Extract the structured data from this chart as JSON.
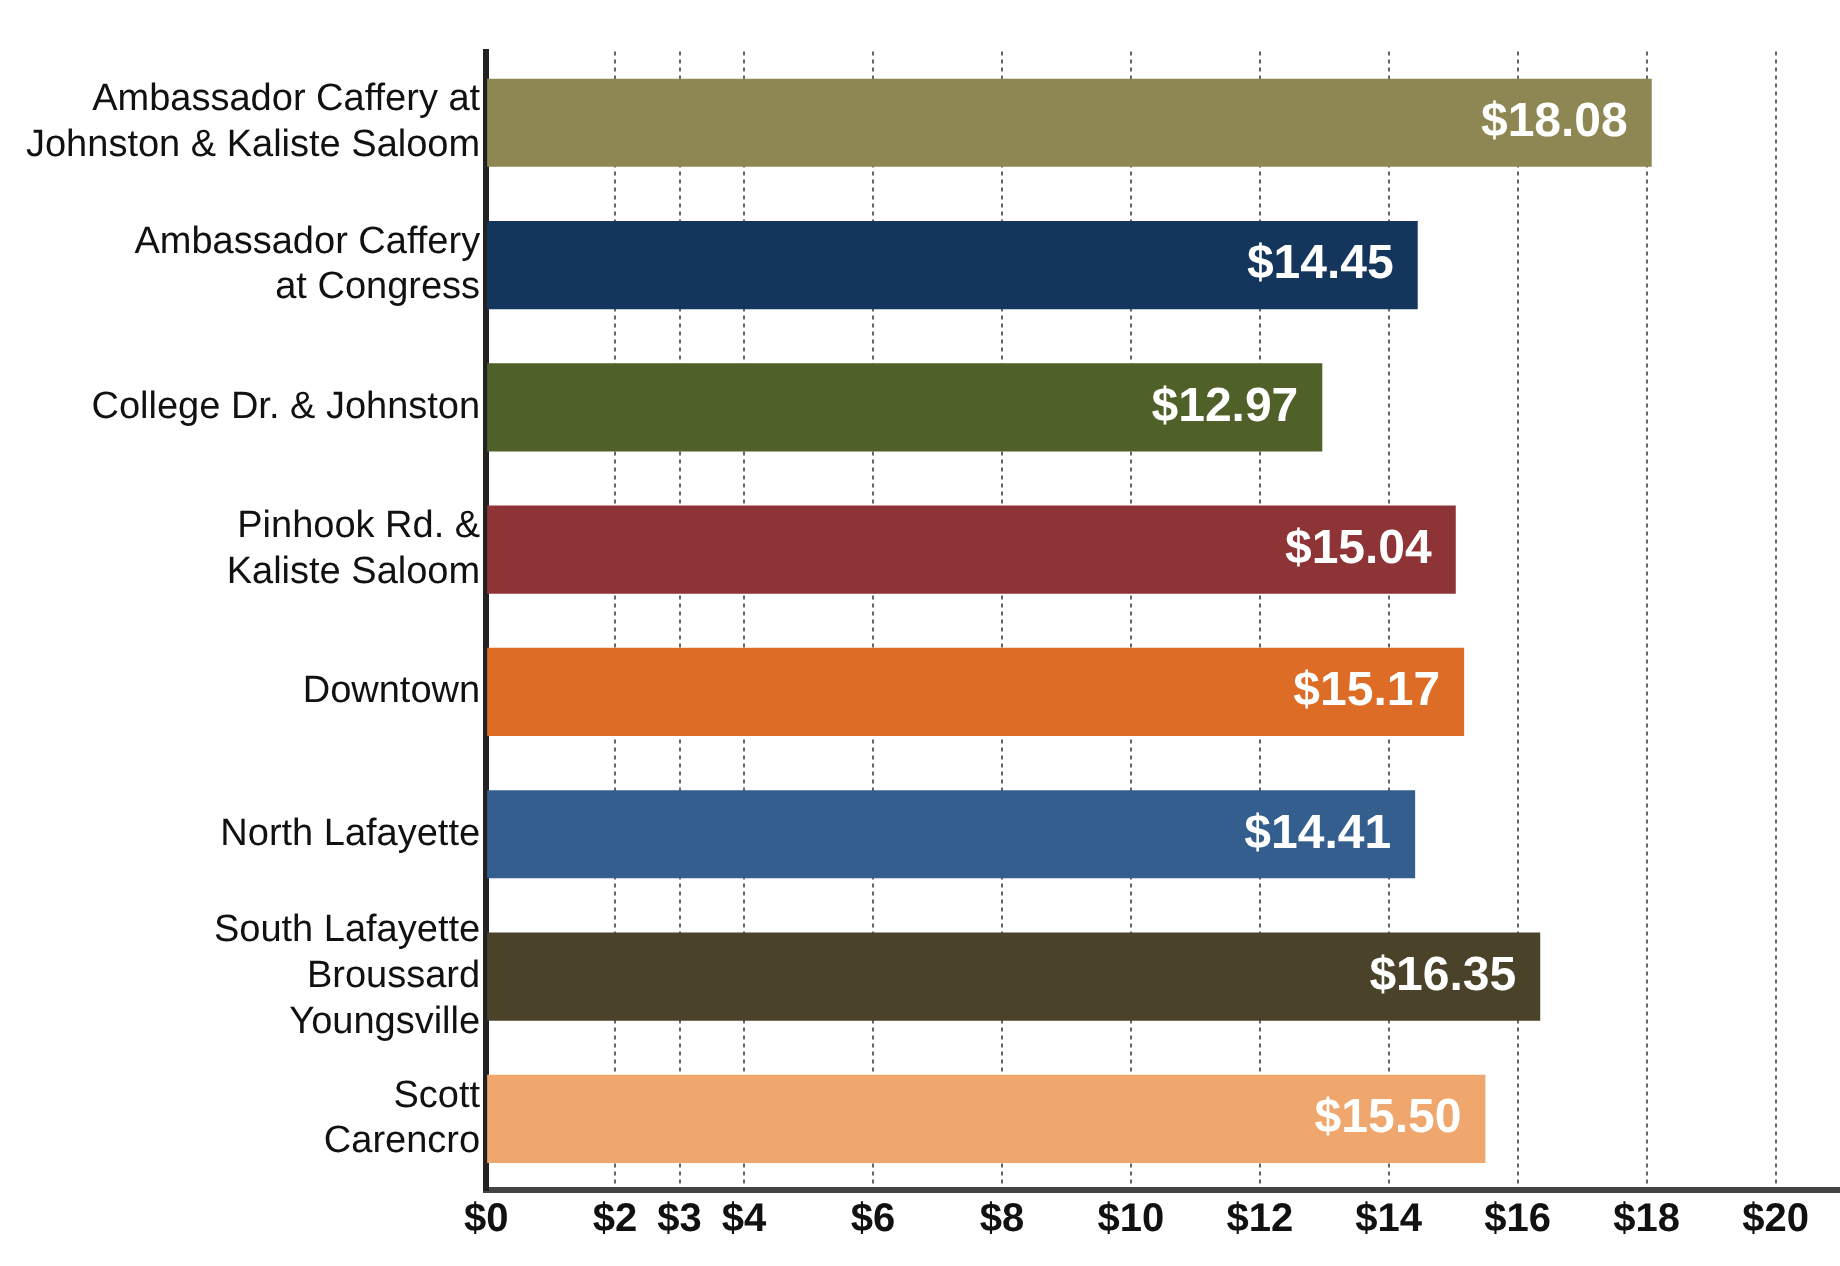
{
  "chart_data": {
    "type": "bar",
    "orientation": "horizontal",
    "categories": [
      "Ambassador Caffery at\nJohnston & Kaliste Saloom",
      "Ambassador Caffery\nat Congress",
      "College Dr. & Johnston",
      "Pinhook Rd. &\nKaliste Saloom",
      "Downtown",
      "North Lafayette",
      "South Lafayette\nBroussard\nYoungsville",
      "Scott\nCarencro"
    ],
    "values": [
      18.08,
      14.45,
      12.97,
      15.04,
      15.17,
      14.41,
      16.35,
      15.5
    ],
    "colors": [
      "#8f8753",
      "#15365c",
      "#4f6129",
      "#8e3336",
      "#dd6c27",
      "#345e8e",
      "#4a432a",
      "#f0a76e"
    ],
    "value_labels": [
      "$18.08",
      "$14.45",
      "$12.97",
      "$15.04",
      "$15.17",
      "$14.41",
      "$16.35",
      "$15.50"
    ],
    "xlim": [
      0,
      21
    ],
    "xticks": [
      {
        "value": 0,
        "label": "$0"
      },
      {
        "value": 2,
        "label": "$2"
      },
      {
        "value": 3,
        "label": "$3"
      },
      {
        "value": 4,
        "label": "$4"
      },
      {
        "value": 6,
        "label": "$6"
      },
      {
        "value": 8,
        "label": "$8"
      },
      {
        "value": 10,
        "label": "$10"
      },
      {
        "value": 12,
        "label": "$12"
      },
      {
        "value": 14,
        "label": "$14"
      },
      {
        "value": 16,
        "label": "$16"
      },
      {
        "value": 18,
        "label": "$18"
      },
      {
        "value": 20,
        "label": "$20"
      }
    ],
    "grid": "x",
    "legend": false
  }
}
